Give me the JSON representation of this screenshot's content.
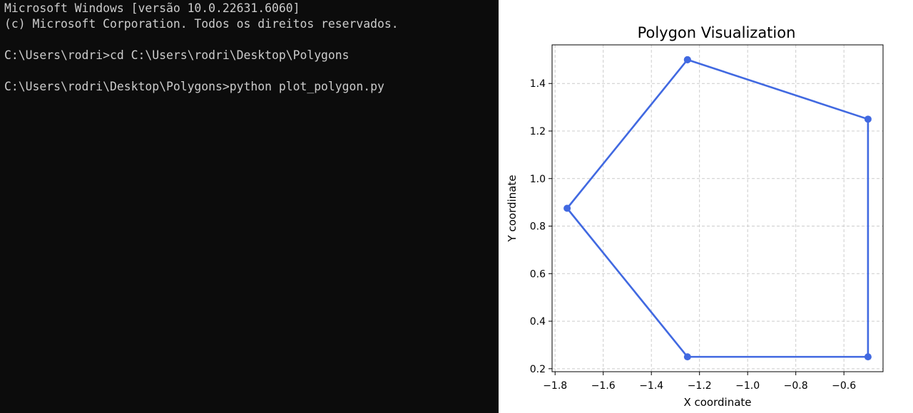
{
  "terminal": {
    "lines": [
      "Microsoft Windows [versão 10.0.22631.6060]",
      "(c) Microsoft Corporation. Todos os direitos reservados.",
      "",
      "C:\\Users\\rodri>cd C:\\Users\\rodri\\Desktop\\Polygons",
      "",
      "C:\\Users\\rodri\\Desktop\\Polygons>python plot_polygon.py"
    ],
    "background_color": "#0c0c0c",
    "text_color": "#cccccc"
  },
  "chart_data": {
    "type": "line",
    "title": "Polygon Visualization",
    "xlabel": "X coordinate",
    "ylabel": "Y coordinate",
    "series": [
      {
        "x": [
          -1.25,
          -0.5,
          -0.5,
          -1.25,
          -1.75,
          -1.25
        ],
        "y": [
          1.5,
          1.25,
          0.25,
          0.25,
          0.875,
          1.5
        ],
        "color": "#4169e1",
        "marker": "circle"
      }
    ],
    "xlim": [
      -1.8125,
      -0.4375
    ],
    "ylim": [
      0.1875,
      1.5625
    ],
    "xticks": [
      -1.8,
      -1.6,
      -1.4,
      -1.2,
      -1.0,
      -0.8,
      -0.6
    ],
    "xtick_labels": [
      "−1.8",
      "−1.6",
      "−1.4",
      "−1.2",
      "−1.0",
      "−0.8",
      "−0.6"
    ],
    "yticks": [
      0.2,
      0.4,
      0.6,
      0.8,
      1.0,
      1.2,
      1.4
    ],
    "ytick_labels": [
      "0.2",
      "0.4",
      "0.6",
      "0.8",
      "1.0",
      "1.2",
      "1.4"
    ],
    "grid": true,
    "grid_style": "dashed",
    "grid_color": "#cccccc"
  }
}
